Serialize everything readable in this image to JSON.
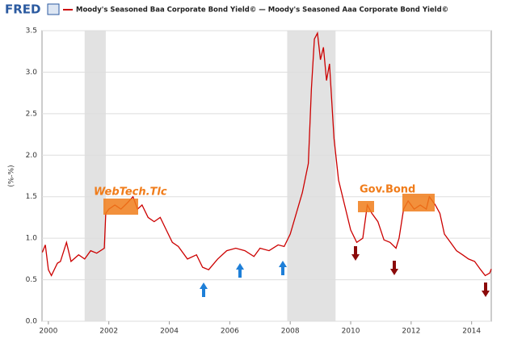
{
  "chart_data": {
    "type": "line",
    "logo": "FRED",
    "y_axis_label": "(%-%)",
    "annotations": [
      "WebTech.Tlc",
      "Gov.Bond"
    ],
    "shaded_periods": [
      [
        2001.2,
        2001.9
      ],
      [
        2007.9,
        2009.5
      ]
    ],
    "x": [
      1999.8,
      1999.9,
      2000.0,
      2000.1,
      2000.3,
      2000.4,
      2000.6,
      2000.75,
      2001.0,
      2001.2,
      2001.4,
      2001.6,
      2001.85,
      2001.9,
      2002.0,
      2002.2,
      2002.4,
      2002.6,
      2002.8,
      2002.95,
      2003.1,
      2003.3,
      2003.5,
      2003.7,
      2003.9,
      2004.1,
      2004.3,
      2004.6,
      2004.9,
      2005.1,
      2005.3,
      2005.6,
      2005.9,
      2006.2,
      2006.5,
      2006.8,
      2007.0,
      2007.3,
      2007.6,
      2007.8,
      2008.0,
      2008.2,
      2008.4,
      2008.6,
      2008.7,
      2008.8,
      2008.9,
      2009.0,
      2009.1,
      2009.2,
      2009.3,
      2009.45,
      2009.6,
      2009.8,
      2010.0,
      2010.2,
      2010.4,
      2010.55,
      2010.7,
      2010.9,
      2011.1,
      2011.3,
      2011.5,
      2011.6,
      2011.75,
      2011.9,
      2012.1,
      2012.3,
      2012.5,
      2012.6,
      2012.8,
      2012.95,
      2013.1,
      2013.3,
      2013.5,
      2013.7,
      2013.9,
      2014.1,
      2014.3,
      2014.45,
      2014.6,
      2014.65
    ],
    "series": [
      {
        "name": "Moody's Seasoned Baa Corporate Bond Yield© — Moody's Seasoned Aaa Corporate Bond Yield©",
        "color": "#cc0000",
        "values": [
          0.83,
          0.92,
          0.62,
          0.55,
          0.7,
          0.72,
          0.95,
          0.72,
          0.8,
          0.75,
          0.85,
          0.82,
          0.88,
          1.3,
          1.35,
          1.4,
          1.35,
          1.42,
          1.5,
          1.35,
          1.4,
          1.25,
          1.2,
          1.25,
          1.1,
          0.95,
          0.9,
          0.75,
          0.8,
          0.65,
          0.62,
          0.75,
          0.85,
          0.88,
          0.85,
          0.78,
          0.88,
          0.85,
          0.92,
          0.9,
          1.05,
          1.3,
          1.55,
          1.9,
          2.8,
          3.4,
          3.47,
          3.15,
          3.3,
          2.9,
          3.1,
          2.2,
          1.7,
          1.4,
          1.1,
          0.95,
          1.0,
          1.4,
          1.3,
          1.2,
          0.98,
          0.95,
          0.88,
          1.0,
          1.35,
          1.45,
          1.35,
          1.4,
          1.35,
          1.5,
          1.4,
          1.3,
          1.05,
          0.95,
          0.85,
          0.8,
          0.75,
          0.72,
          0.62,
          0.55,
          0.58,
          0.63
        ]
      }
    ],
    "xlim": [
      1999.79,
      2014.65
    ],
    "xticks": [
      2000,
      2002,
      2004,
      2006,
      2008,
      2010,
      2012,
      2014
    ],
    "ylim": [
      0,
      3.5
    ],
    "yticks": [
      {
        "value": 0,
        "label": "0.0"
      },
      0.5,
      {
        "value": 1,
        "label": "1.0"
      },
      1.5,
      {
        "value": 2,
        "label": "2.0"
      },
      2.5,
      {
        "value": 3,
        "label": "3.0"
      },
      3.5
    ],
    "grid": true
  }
}
